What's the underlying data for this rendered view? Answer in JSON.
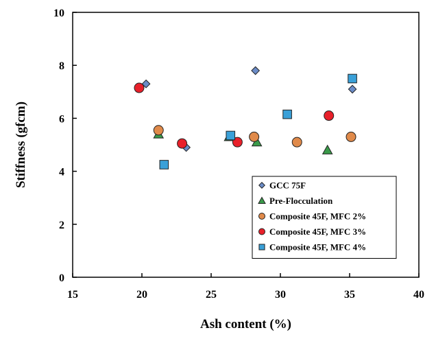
{
  "chart_data": {
    "type": "scatter",
    "title": "",
    "xlabel": "Ash content (%)",
    "ylabel": "Stiffness (gfcm)",
    "xlim": [
      15,
      40
    ],
    "ylim": [
      0,
      10
    ],
    "x_ticks": [
      15,
      20,
      25,
      30,
      35,
      40
    ],
    "y_ticks": [
      0,
      2,
      4,
      6,
      8,
      10
    ],
    "grid": false,
    "legend_position": "bottom-right",
    "series": [
      {
        "name": "GCC 75F",
        "marker": "diamond",
        "color": "#6b8cc7",
        "points": [
          [
            20.3,
            7.3
          ],
          [
            23.2,
            4.9
          ],
          [
            28.2,
            7.8
          ],
          [
            35.2,
            7.1
          ]
        ]
      },
      {
        "name": "Pre-Flocculation",
        "marker": "triangle",
        "color": "#3a9a4a",
        "points": [
          [
            21.2,
            5.4
          ],
          [
            26.3,
            5.3
          ],
          [
            28.3,
            5.1
          ],
          [
            33.4,
            4.8
          ]
        ]
      },
      {
        "name": "Composite 45F, MFC 2%",
        "marker": "circle",
        "color": "#e08a4a",
        "points": [
          [
            21.2,
            5.55
          ],
          [
            28.1,
            5.3
          ],
          [
            31.2,
            5.1
          ],
          [
            35.1,
            5.3
          ]
        ]
      },
      {
        "name": "Composite 45F, MFC 3%",
        "marker": "circle",
        "color": "#e8202a",
        "points": [
          [
            19.8,
            7.15
          ],
          [
            22.9,
            5.05
          ],
          [
            26.9,
            5.1
          ],
          [
            33.5,
            6.1
          ]
        ]
      },
      {
        "name": "Composite 45F, MFC 4%",
        "marker": "square",
        "color": "#3aa0d8",
        "points": [
          [
            21.6,
            4.25
          ],
          [
            26.4,
            5.35
          ],
          [
            30.5,
            6.15
          ],
          [
            35.2,
            7.5
          ]
        ]
      }
    ]
  }
}
